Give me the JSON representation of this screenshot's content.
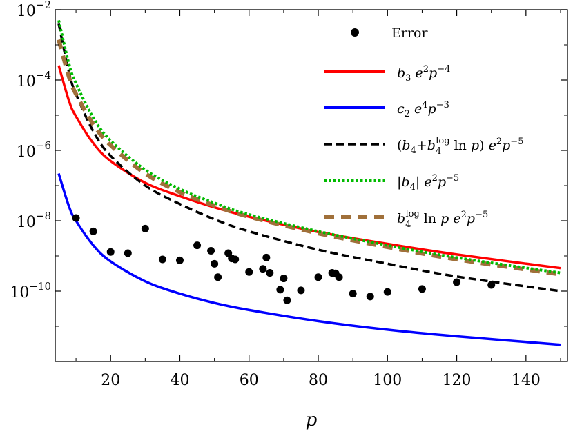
{
  "chart_data": {
    "type": "scatter",
    "xlabel": "p",
    "xlim": [
      4,
      152
    ],
    "ylim": [
      1e-12,
      0.01
    ],
    "yscale": "log",
    "xticks": [
      20,
      40,
      60,
      80,
      100,
      120,
      140
    ],
    "xtick_labels": [
      "20",
      "40",
      "60",
      "80",
      "100",
      "120",
      "140"
    ],
    "yticks": [
      0.01,
      0.0001,
      1e-06,
      1e-08,
      1e-10
    ],
    "ytick_labels": [
      {
        "base": "10",
        "exp": "−2"
      },
      {
        "base": "10",
        "exp": "−4"
      },
      {
        "base": "10",
        "exp": "−6"
      },
      {
        "base": "10",
        "exp": "−8"
      },
      {
        "base": "10",
        "exp": "−10"
      }
    ],
    "grid": false,
    "legend_position": "top-right",
    "series": [
      {
        "name": "Error",
        "kind": "points",
        "color": "#000000",
        "points": [
          [
            10,
            1.2e-08
          ],
          [
            15,
            5e-09
          ],
          [
            20,
            1.3e-09
          ],
          [
            25,
            1.2e-09
          ],
          [
            30,
            6e-09
          ],
          [
            35,
            8e-10
          ],
          [
            40,
            7.5e-10
          ],
          [
            45,
            2e-09
          ],
          [
            49,
            1.4e-09
          ],
          [
            50,
            6e-10
          ],
          [
            51,
            2.5e-10
          ],
          [
            54,
            1.2e-09
          ],
          [
            55,
            8.5e-10
          ],
          [
            56,
            8e-10
          ],
          [
            60,
            3.5e-10
          ],
          [
            64,
            4.3e-10
          ],
          [
            65,
            9e-10
          ],
          [
            66,
            3.3e-10
          ],
          [
            69,
            1.1e-10
          ],
          [
            70,
            2.3e-10
          ],
          [
            71,
            5.5e-11
          ],
          [
            75,
            1.05e-10
          ],
          [
            80,
            2.5e-10
          ],
          [
            84,
            3.3e-10
          ],
          [
            85,
            3.2e-10
          ],
          [
            86,
            2.5e-10
          ],
          [
            90,
            8.5e-11
          ],
          [
            95,
            7e-11
          ],
          [
            100,
            9.5e-11
          ],
          [
            110,
            1.15e-10
          ],
          [
            120,
            1.8e-10
          ],
          [
            130,
            1.5e-10
          ]
        ]
      },
      {
        "name": "b3 e^2 p^-4",
        "kind": "line",
        "color": "#ff0000",
        "dash": "solid",
        "x": [
          5,
          8,
          10,
          15,
          20,
          30,
          40,
          50,
          60,
          80,
          100,
          120,
          150
        ],
        "y": [
          0.00026,
          2.5e-05,
          9.3e-06,
          1.6e-06,
          5e-07,
          1.2e-07,
          5e-08,
          2.4e-08,
          1.3e-08,
          4.8e-09,
          2.2e-09,
          1.1e-09,
          4.5e-10
        ]
      },
      {
        "name": "c2 e^4 p^-3",
        "kind": "line",
        "color": "#0000ff",
        "dash": "solid",
        "x": [
          5,
          8,
          10,
          15,
          20,
          30,
          40,
          50,
          60,
          80,
          100,
          120,
          150
        ],
        "y": [
          2.2e-07,
          2.5e-08,
          1e-08,
          2e-09,
          7e-10,
          1.9e-10,
          8.5e-11,
          4.6e-11,
          2.9e-11,
          1.4e-11,
          8e-12,
          5.2e-12,
          3e-12
        ]
      },
      {
        "name": "(b4 + b4log ln p) e^2 p^-5",
        "kind": "line",
        "color": "#000000",
        "dash": "dashed",
        "x": [
          5,
          8,
          10,
          15,
          20,
          30,
          40,
          50,
          60,
          80,
          100,
          120,
          150
        ],
        "y": [
          0.004,
          0.00016,
          4e-05,
          3.5e-06,
          7e-07,
          1e-07,
          3e-08,
          1.1e-08,
          5e-09,
          1.5e-09,
          6e-10,
          2.6e-10,
          1e-10
        ]
      },
      {
        "name": "|b4| e^2 p^-5",
        "kind": "line",
        "color": "#00bb00",
        "dash": "dotted",
        "x": [
          5,
          8,
          10,
          15,
          20,
          30,
          40,
          50,
          60,
          80,
          100,
          120,
          150
        ],
        "y": [
          0.005,
          0.00028,
          8e-05,
          8.5e-06,
          1.9e-06,
          2.8e-07,
          8e-08,
          3.2e-08,
          1.5e-08,
          5e-09,
          2e-09,
          9e-10,
          3.3e-10
        ]
      },
      {
        "name": "b4log ln p e^2 p^-5",
        "kind": "line",
        "color": "#a0703a",
        "dash": "wide-dashed",
        "x": [
          5,
          8,
          10,
          15,
          20,
          30,
          40,
          50,
          60,
          80,
          100,
          120,
          150
        ],
        "y": [
          0.0014,
          0.00012,
          4e-05,
          5.5e-06,
          1.4e-06,
          2.2e-07,
          6.5e-08,
          2.7e-08,
          1.3e-08,
          4.4e-09,
          1.8e-09,
          8e-10,
          3e-10
        ]
      }
    ]
  }
}
